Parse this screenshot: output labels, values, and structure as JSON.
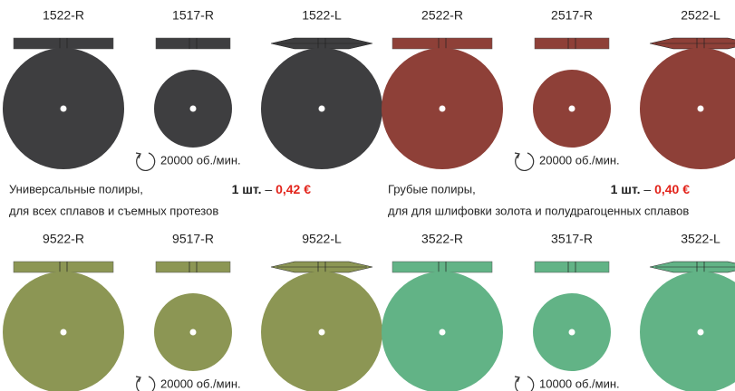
{
  "groups": [
    {
      "color": "#3e3e40",
      "products": [
        {
          "code": "1522-R"
        },
        {
          "code": "1517-R"
        },
        {
          "code": "1522-L"
        }
      ],
      "speed": "20000 об./мин.",
      "description": [
        "Универсальные полиры,",
        "для всех сплавов и съемных протезов"
      ],
      "price": {
        "quantity": "1 шт.",
        "separator": "–",
        "amount": "0,42 €"
      }
    },
    {
      "color": "#8e4038",
      "products": [
        {
          "code": "2522-R"
        },
        {
          "code": "2517-R"
        },
        {
          "code": "2522-L"
        }
      ],
      "speed": "20000 об./мин.",
      "description": [
        "Грубые полиры,",
        "для для шлифовки золота и полудрагоценных сплавов"
      ],
      "price": {
        "quantity": "1 шт.",
        "separator": "–",
        "amount": "0,40 €"
      }
    },
    {
      "color": "#8c9654",
      "products": [
        {
          "code": "9522-R"
        },
        {
          "code": "9517-R"
        },
        {
          "code": "9522-L"
        }
      ],
      "speed": "20000 об./мин."
    },
    {
      "color": "#62b386",
      "products": [
        {
          "code": "3522-R"
        },
        {
          "code": "3517-R"
        },
        {
          "code": "3522-L"
        }
      ],
      "speed": "10000 об./мин."
    }
  ]
}
